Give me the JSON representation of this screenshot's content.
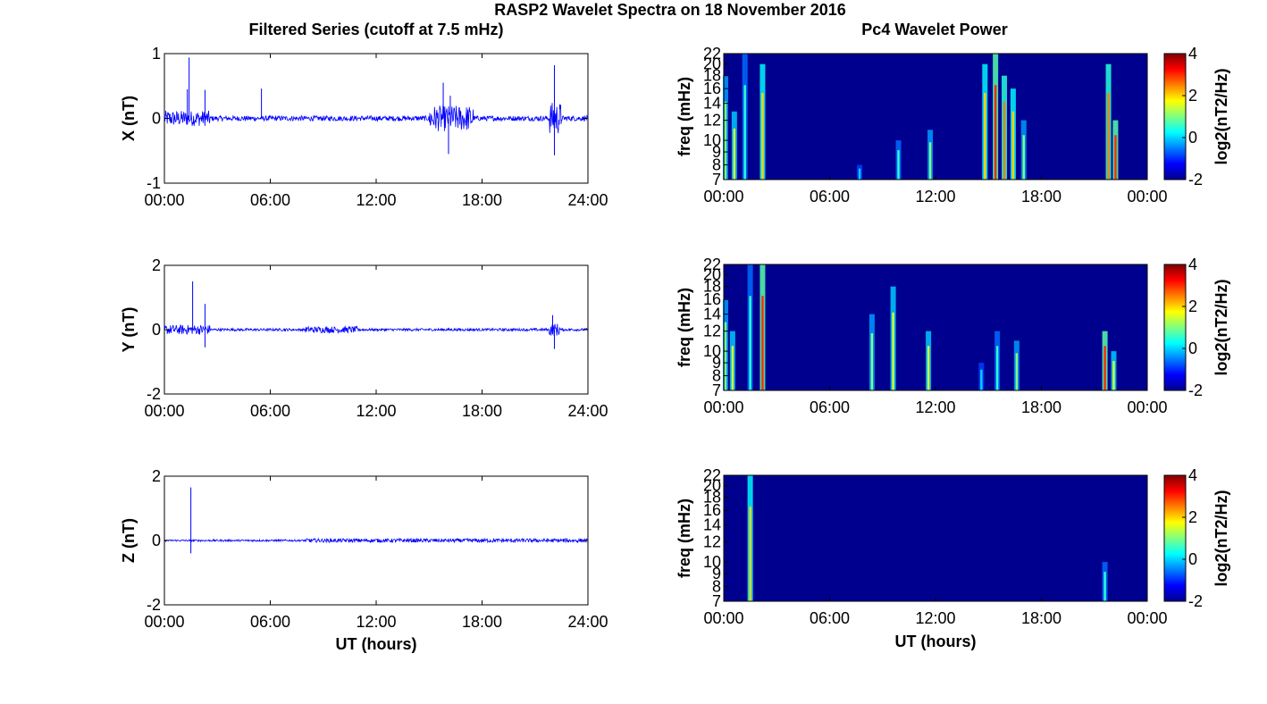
{
  "figure": {
    "title": "RASP2 Wavelet Spectra on 18 November 2016",
    "left_title": "Filtered Series (cutoff at 7.5 mHz)",
    "right_title": "Pc4 Wavelet Power"
  },
  "colors": {
    "trace": "#0000ff",
    "axis": "#000000",
    "background_power": "#00008f",
    "colormap": [
      "#00008f",
      "#0000ff",
      "#00ffff",
      "#ffff00",
      "#ff0000",
      "#800000"
    ]
  },
  "chart_data": [
    {
      "type": "line",
      "ylabel": "X (nT)",
      "xlabel": "",
      "xticks": [
        "00:00",
        "06:00",
        "12:00",
        "18:00",
        "24:00"
      ],
      "yticks": [
        "-1",
        "0",
        "1"
      ],
      "xlim": [
        0,
        24
      ],
      "ylim": [
        -1,
        1
      ],
      "spikes": [
        {
          "x": 1.4,
          "y": 0.94
        },
        {
          "x": 1.3,
          "y": 0.45
        },
        {
          "x": 2.3,
          "y": 0.44
        },
        {
          "x": 5.5,
          "y": 0.46
        },
        {
          "x": 15.8,
          "y": 0.55
        },
        {
          "x": 16.2,
          "y": 0.35
        },
        {
          "x": 22.1,
          "y": 0.82
        },
        {
          "x": 22.1,
          "y": -0.57
        },
        {
          "x": 16.1,
          "y": -0.55
        }
      ],
      "active_intervals": [
        {
          "start": 0.0,
          "end": 2.6,
          "amp": 0.12
        },
        {
          "start": 15.0,
          "end": 17.5,
          "amp": 0.2
        },
        {
          "start": 21.8,
          "end": 22.5,
          "amp": 0.25
        }
      ],
      "base_amplitude": 0.04
    },
    {
      "type": "line",
      "ylabel": "Y (nT)",
      "xlabel": "",
      "xticks": [
        "00:00",
        "06:00",
        "12:00",
        "18:00",
        "24:00"
      ],
      "yticks": [
        "-2",
        "0",
        "2"
      ],
      "xlim": [
        0,
        24
      ],
      "ylim": [
        -2,
        2
      ],
      "spikes": [
        {
          "x": 1.6,
          "y": 1.5
        },
        {
          "x": 2.3,
          "y": 0.8
        },
        {
          "x": 2.3,
          "y": -0.55
        },
        {
          "x": 22.0,
          "y": 0.45
        },
        {
          "x": 22.1,
          "y": -0.6
        }
      ],
      "active_intervals": [
        {
          "start": 0.0,
          "end": 2.6,
          "amp": 0.15
        },
        {
          "start": 8.0,
          "end": 11.0,
          "amp": 0.1
        },
        {
          "start": 21.8,
          "end": 22.4,
          "amp": 0.2
        }
      ],
      "base_amplitude": 0.04
    },
    {
      "type": "line",
      "ylabel": "Z (nT)",
      "xlabel": "UT (hours)",
      "xticks": [
        "00:00",
        "06:00",
        "12:00",
        "18:00",
        "24:00"
      ],
      "yticks": [
        "-2",
        "0",
        "2"
      ],
      "xlim": [
        0,
        24
      ],
      "ylim": [
        -2,
        2
      ],
      "spikes": [
        {
          "x": 1.5,
          "y": 1.65
        },
        {
          "x": 1.5,
          "y": -0.4
        }
      ],
      "active_intervals": [
        {
          "start": 8.0,
          "end": 24.0,
          "amp": 0.06
        }
      ],
      "base_amplitude": 0.03
    },
    {
      "type": "heatmap",
      "ylabel": "freq (mHz)",
      "xlabel": "",
      "xticks": [
        "00:00",
        "06:00",
        "12:00",
        "18:00",
        "00:00"
      ],
      "yticks": [
        "7",
        "8",
        "9",
        "10",
        "12",
        "14",
        "16",
        "18",
        "20",
        "22"
      ],
      "xlim": [
        0,
        24
      ],
      "ylim": [
        7,
        22
      ],
      "colorbar": {
        "label": "log2(nT2/Hz)",
        "ticks": [
          "-2",
          "0",
          "2",
          "4"
        ],
        "range": [
          -2,
          4
        ]
      },
      "bursts": [
        {
          "x": 0.1,
          "fmax": 18,
          "level": 1.0
        },
        {
          "x": 0.6,
          "fmax": 13,
          "level": 1.5
        },
        {
          "x": 1.2,
          "fmax": 22,
          "level": 0.5
        },
        {
          "x": 2.2,
          "fmax": 20,
          "level": 2.0
        },
        {
          "x": 7.7,
          "fmax": 8,
          "level": 0.0
        },
        {
          "x": 9.9,
          "fmax": 10,
          "level": 0.5
        },
        {
          "x": 11.7,
          "fmax": 11,
          "level": 1.0
        },
        {
          "x": 14.8,
          "fmax": 20,
          "level": 2.0
        },
        {
          "x": 15.4,
          "fmax": 22,
          "level": 3.0
        },
        {
          "x": 15.9,
          "fmax": 18,
          "level": 2.5
        },
        {
          "x": 16.4,
          "fmax": 16,
          "level": 2.0
        },
        {
          "x": 17.0,
          "fmax": 12,
          "level": 1.0
        },
        {
          "x": 21.8,
          "fmax": 20,
          "level": 2.5
        },
        {
          "x": 22.2,
          "fmax": 12,
          "level": 3.0
        }
      ]
    },
    {
      "type": "heatmap",
      "ylabel": "freq (mHz)",
      "xlabel": "",
      "xticks": [
        "00:00",
        "06:00",
        "12:00",
        "18:00",
        "00:00"
      ],
      "yticks": [
        "7",
        "8",
        "9",
        "10",
        "12",
        "14",
        "16",
        "18",
        "20",
        "22"
      ],
      "xlim": [
        0,
        24
      ],
      "ylim": [
        7,
        22
      ],
      "colorbar": {
        "label": "log2(nT2/Hz)",
        "ticks": [
          "-2",
          "0",
          "2",
          "4"
        ],
        "range": [
          -2,
          4
        ]
      },
      "bursts": [
        {
          "x": 0.1,
          "fmax": 16,
          "level": 1.0
        },
        {
          "x": 0.5,
          "fmax": 12,
          "level": 1.5
        },
        {
          "x": 1.5,
          "fmax": 22,
          "level": 0.5
        },
        {
          "x": 2.2,
          "fmax": 22,
          "level": 3.0
        },
        {
          "x": 8.4,
          "fmax": 14,
          "level": 1.0
        },
        {
          "x": 9.6,
          "fmax": 18,
          "level": 1.5
        },
        {
          "x": 11.6,
          "fmax": 12,
          "level": 1.5
        },
        {
          "x": 14.6,
          "fmax": 9,
          "level": 0.0
        },
        {
          "x": 15.5,
          "fmax": 12,
          "level": 0.5
        },
        {
          "x": 16.6,
          "fmax": 11,
          "level": 1.0
        },
        {
          "x": 21.6,
          "fmax": 12,
          "level": 3.0
        },
        {
          "x": 22.1,
          "fmax": 10,
          "level": 1.5
        }
      ]
    },
    {
      "type": "heatmap",
      "ylabel": "freq (mHz)",
      "xlabel": "UT (hours)",
      "xticks": [
        "00:00",
        "06:00",
        "12:00",
        "18:00",
        "00:00"
      ],
      "yticks": [
        "7",
        "8",
        "9",
        "10",
        "12",
        "14",
        "16",
        "18",
        "20",
        "22"
      ],
      "xlim": [
        0,
        24
      ],
      "ylim": [
        7,
        22
      ],
      "colorbar": {
        "label": "log2(nT2/Hz)",
        "ticks": [
          "-2",
          "0",
          "2",
          "4"
        ],
        "range": [
          -2,
          4
        ]
      },
      "bursts": [
        {
          "x": 1.5,
          "fmax": 22,
          "level": 2.0
        },
        {
          "x": 21.6,
          "fmax": 10,
          "level": 0.5
        }
      ]
    }
  ]
}
